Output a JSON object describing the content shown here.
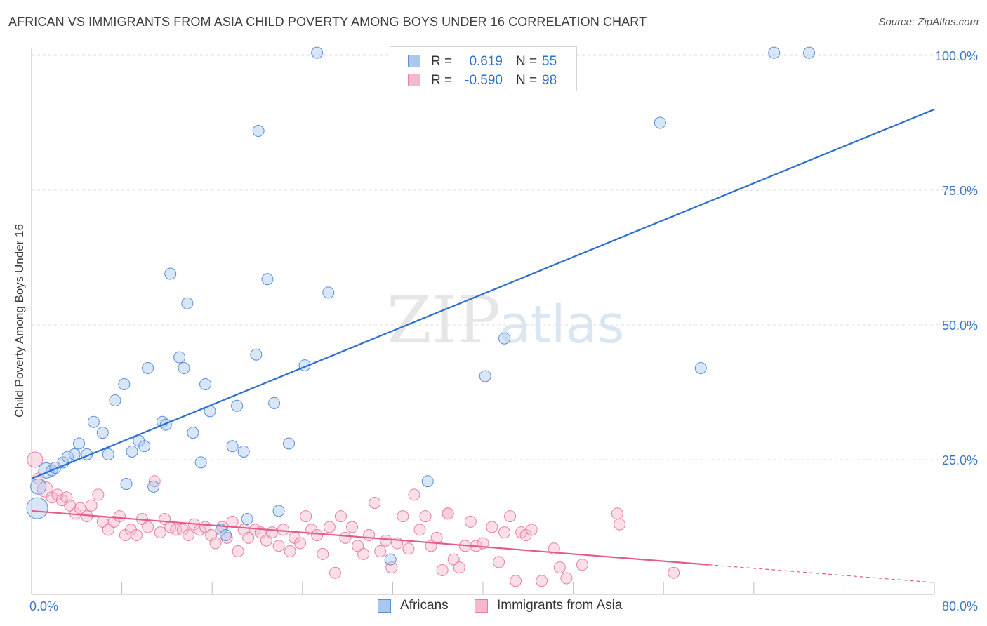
{
  "title": "AFRICAN VS IMMIGRANTS FROM ASIA CHILD POVERTY AMONG BOYS UNDER 16 CORRELATION CHART",
  "source": "Source: ZipAtlas.com",
  "watermark": {
    "zip": "ZIP",
    "atlas": "atlas"
  },
  "legend_top": {
    "rows": [
      {
        "r_label": "R =",
        "r_value": "0.619",
        "n_label": "N =",
        "n_value": "55"
      },
      {
        "r_label": "R =",
        "r_value": "-0.590",
        "n_label": "N =",
        "n_value": "98"
      }
    ]
  },
  "legend_bottom": {
    "items": [
      {
        "label": "Africans"
      },
      {
        "label": "Immigrants from Asia"
      }
    ]
  },
  "colors": {
    "blue_fill": "#a8c8f0",
    "blue_stroke": "#5b8fd6",
    "blue_line": "#2a6fd1",
    "pink_fill": "#f7b8cc",
    "pink_stroke": "#e87fa2",
    "pink_line": "#e45b8a",
    "tick_label": "#3b78c9",
    "grid": "#dcdcdc"
  },
  "chart_data": {
    "type": "scatter",
    "title": "AFRICAN VS IMMIGRANTS FROM ASIA CHILD POVERTY AMONG BOYS UNDER 16 CORRELATION CHART",
    "xlabel": "",
    "ylabel": "Child Poverty Among Boys Under 16",
    "xlim": [
      0,
      80
    ],
    "ylim": [
      0,
      102
    ],
    "x_tick_labels": [
      "0.0%",
      "80.0%"
    ],
    "y_ticks": [
      25,
      50,
      75,
      100
    ],
    "y_tick_labels": [
      "25.0%",
      "50.0%",
      "75.0%",
      "100.0%"
    ],
    "grid": true,
    "legend_position": "top-center",
    "series": [
      {
        "name": "Africans",
        "r": 0.619,
        "n": 55,
        "trend": {
          "x": [
            0,
            80
          ],
          "y": [
            21.5,
            90
          ]
        },
        "points": [
          [
            0.5,
            16,
            3
          ],
          [
            0.6,
            20,
            2
          ],
          [
            1.3,
            23,
            2
          ],
          [
            1.8,
            23,
            1
          ],
          [
            2.1,
            23.5,
            1
          ],
          [
            2.8,
            24.5,
            1
          ],
          [
            3.2,
            25.5,
            1
          ],
          [
            3.8,
            26,
            1
          ],
          [
            4.2,
            28,
            1
          ],
          [
            4.9,
            26,
            1
          ],
          [
            5.5,
            32,
            1
          ],
          [
            6.3,
            30,
            1
          ],
          [
            6.8,
            26,
            1
          ],
          [
            7.4,
            36,
            1
          ],
          [
            8.2,
            39,
            1
          ],
          [
            8.4,
            20.5,
            1
          ],
          [
            8.9,
            26.5,
            1
          ],
          [
            9.5,
            28.5,
            1
          ],
          [
            10.0,
            27.5,
            1
          ],
          [
            10.3,
            42,
            1
          ],
          [
            10.8,
            20,
            1
          ],
          [
            11.6,
            32,
            1
          ],
          [
            11.9,
            31.5,
            1
          ],
          [
            12.3,
            59.5,
            1
          ],
          [
            13.1,
            44,
            1
          ],
          [
            13.5,
            42,
            1
          ],
          [
            13.8,
            54,
            1
          ],
          [
            14.3,
            30,
            1
          ],
          [
            15.0,
            24.5,
            1
          ],
          [
            15.4,
            39,
            1
          ],
          [
            15.8,
            34,
            1
          ],
          [
            16.8,
            12,
            1
          ],
          [
            17.2,
            11,
            1
          ],
          [
            17.8,
            27.5,
            1
          ],
          [
            18.2,
            35,
            1
          ],
          [
            18.8,
            26.5,
            1
          ],
          [
            19.1,
            14,
            1
          ],
          [
            19.9,
            44.5,
            1
          ],
          [
            20.1,
            86,
            1
          ],
          [
            20.9,
            58.5,
            1
          ],
          [
            21.5,
            35.5,
            1
          ],
          [
            21.9,
            15.5,
            1
          ],
          [
            22.8,
            28,
            1
          ],
          [
            24.2,
            42.5,
            1
          ],
          [
            25.3,
            100.5,
            1
          ],
          [
            26.3,
            56,
            1
          ],
          [
            31.8,
            6.5,
            1
          ],
          [
            35.1,
            21,
            1
          ],
          [
            40.2,
            40.5,
            1
          ],
          [
            41.9,
            47.5,
            1
          ],
          [
            55.7,
            87.5,
            1
          ],
          [
            59.3,
            42,
            1
          ],
          [
            65.8,
            100.5,
            1
          ],
          [
            68.9,
            100.5,
            1
          ]
        ]
      },
      {
        "name": "Immigrants from Asia",
        "r": -0.59,
        "n": 98,
        "trend": {
          "x": [
            0,
            60,
            80
          ],
          "y": [
            15.5,
            5.5,
            2.2
          ],
          "dashed_from_x": 60
        },
        "points": [
          [
            0.3,
            25,
            2
          ],
          [
            0.6,
            21.5,
            1
          ],
          [
            1.2,
            19.5,
            2
          ],
          [
            1.8,
            18,
            1
          ],
          [
            2.3,
            18.5,
            1
          ],
          [
            2.7,
            17.5,
            1
          ],
          [
            3.1,
            18,
            1
          ],
          [
            3.4,
            16.5,
            1
          ],
          [
            3.9,
            15,
            1
          ],
          [
            4.3,
            16,
            1
          ],
          [
            4.9,
            14.5,
            1
          ],
          [
            5.3,
            16.5,
            1
          ],
          [
            5.9,
            18.5,
            1
          ],
          [
            6.3,
            13.5,
            1
          ],
          [
            6.8,
            12,
            1
          ],
          [
            7.3,
            13.5,
            1
          ],
          [
            7.8,
            14.5,
            1
          ],
          [
            8.3,
            11,
            1
          ],
          [
            8.8,
            12,
            1
          ],
          [
            9.3,
            11,
            1
          ],
          [
            9.8,
            14,
            1
          ],
          [
            10.3,
            12.5,
            1
          ],
          [
            10.9,
            21,
            1
          ],
          [
            11.4,
            11.5,
            1
          ],
          [
            11.8,
            14,
            1
          ],
          [
            12.3,
            12.5,
            1
          ],
          [
            12.8,
            12,
            1
          ],
          [
            13.4,
            12,
            1
          ],
          [
            13.9,
            11,
            1
          ],
          [
            14.4,
            13,
            1
          ],
          [
            14.9,
            12,
            1
          ],
          [
            15.4,
            12.5,
            1
          ],
          [
            15.9,
            11,
            1
          ],
          [
            16.3,
            9.5,
            1
          ],
          [
            16.9,
            12.5,
            1
          ],
          [
            17.3,
            10.5,
            1
          ],
          [
            17.8,
            13.5,
            1
          ],
          [
            18.3,
            8,
            1
          ],
          [
            18.8,
            12,
            1
          ],
          [
            19.2,
            10.5,
            1
          ],
          [
            19.8,
            12,
            1
          ],
          [
            20.3,
            11.5,
            1
          ],
          [
            20.8,
            10,
            1
          ],
          [
            21.3,
            11.5,
            1
          ],
          [
            21.9,
            9,
            1
          ],
          [
            22.3,
            12,
            1
          ],
          [
            22.9,
            8,
            1
          ],
          [
            23.3,
            10.5,
            1
          ],
          [
            23.8,
            9.5,
            1
          ],
          [
            24.3,
            14.5,
            1
          ],
          [
            24.8,
            12,
            1
          ],
          [
            25.3,
            11,
            1
          ],
          [
            25.8,
            7.5,
            1
          ],
          [
            26.4,
            12.5,
            1
          ],
          [
            26.9,
            4,
            1
          ],
          [
            27.4,
            14.5,
            1
          ],
          [
            27.8,
            10.5,
            1
          ],
          [
            28.4,
            12.5,
            1
          ],
          [
            28.9,
            9,
            1
          ],
          [
            29.4,
            7.5,
            1
          ],
          [
            29.9,
            11,
            1
          ],
          [
            30.4,
            17,
            1
          ],
          [
            30.9,
            8,
            1
          ],
          [
            31.4,
            10,
            1
          ],
          [
            31.9,
            5,
            1
          ],
          [
            32.4,
            9.5,
            1
          ],
          [
            32.9,
            14.5,
            1
          ],
          [
            33.4,
            8.5,
            1
          ],
          [
            33.9,
            18.5,
            1
          ],
          [
            34.4,
            12,
            1
          ],
          [
            34.9,
            14.5,
            1
          ],
          [
            35.4,
            9,
            1
          ],
          [
            35.9,
            10.5,
            1
          ],
          [
            36.4,
            4.5,
            1
          ],
          [
            36.9,
            15,
            1
          ],
          [
            37.4,
            6.5,
            1
          ],
          [
            37.9,
            5,
            1
          ],
          [
            38.4,
            9,
            1
          ],
          [
            38.9,
            13.5,
            1
          ],
          [
            39.4,
            9,
            1
          ],
          [
            40.0,
            9.5,
            1
          ],
          [
            40.8,
            12.5,
            1
          ],
          [
            41.4,
            6,
            1
          ],
          [
            41.9,
            11.5,
            1
          ],
          [
            42.4,
            14.5,
            1
          ],
          [
            42.9,
            2.5,
            1
          ],
          [
            43.4,
            11.5,
            1
          ],
          [
            43.8,
            11,
            1
          ],
          [
            44.3,
            12,
            1
          ],
          [
            45.2,
            2.5,
            1
          ],
          [
            46.3,
            8.5,
            1
          ],
          [
            46.8,
            5,
            1
          ],
          [
            47.4,
            3,
            1
          ],
          [
            48.8,
            5.5,
            1
          ],
          [
            51.9,
            15,
            1
          ],
          [
            52.1,
            13,
            1
          ],
          [
            56.9,
            4,
            1
          ],
          [
            36.9,
            15,
            1
          ]
        ]
      }
    ]
  }
}
